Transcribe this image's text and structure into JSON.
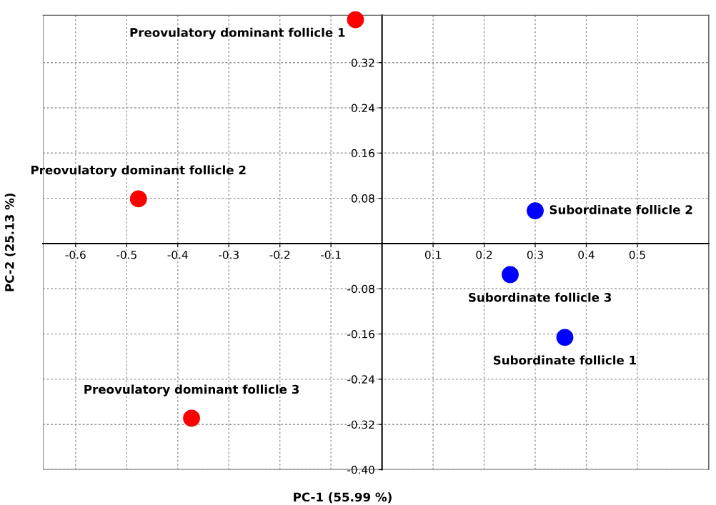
{
  "chart_data": {
    "type": "scatter",
    "xlabel": "PC-1 (55.99 %)",
    "ylabel": "PC-2 (25.13 %)",
    "series": [
      {
        "color": "#ff0000",
        "x": [
          -0.052,
          -0.477,
          -0.373
        ],
        "values": [
          0.396,
          0.079,
          -0.309
        ]
      },
      {
        "color": "#0000ff",
        "x": [
          0.358,
          0.3,
          0.251
        ],
        "values": [
          -0.166,
          0.058,
          -0.055
        ]
      }
    ],
    "annotations": [
      {
        "text": "Preovulatory dominant follicle 1",
        "x": -0.052,
        "y": 0.396
      },
      {
        "text": "Preovulatory dominant follicle 2",
        "x": -0.477,
        "y": 0.079
      },
      {
        "text": "Preovulatory dominant follicle 3",
        "x": -0.373,
        "y": -0.309
      },
      {
        "text": "Subordinate follicle 1",
        "x": 0.358,
        "y": -0.166
      },
      {
        "text": "Subordinate follicle 2",
        "x": 0.3,
        "y": 0.058
      },
      {
        "text": "Subordinate follicle 3",
        "x": 0.251,
        "y": -0.055
      }
    ],
    "xlim": [
      -0.664,
      0.64
    ],
    "ylim": [
      -0.4,
      0.404
    ],
    "xticks": [
      {
        "value": -0.6,
        "label": "-0.6"
      },
      {
        "value": -0.5,
        "label": "-0.5"
      },
      {
        "value": -0.4,
        "label": "-0.4"
      },
      {
        "value": -0.3,
        "label": "-0.3"
      },
      {
        "value": -0.2,
        "label": "-0.2"
      },
      {
        "value": -0.1,
        "label": "-0.1"
      },
      0.1,
      0.2,
      0.3,
      0.4,
      0.5
    ],
    "yticks": [
      0.32,
      0.24,
      0.16,
      0.08,
      {
        "value": -0.08,
        "label": "-0.08"
      },
      {
        "value": -0.16,
        "label": "-0.16"
      },
      {
        "value": -0.24,
        "label": "-0.24"
      },
      {
        "value": -0.32,
        "label": "-0.32"
      },
      {
        "value": -0.4,
        "label": "-0.40"
      }
    ],
    "grid": true,
    "marker": "circle"
  }
}
